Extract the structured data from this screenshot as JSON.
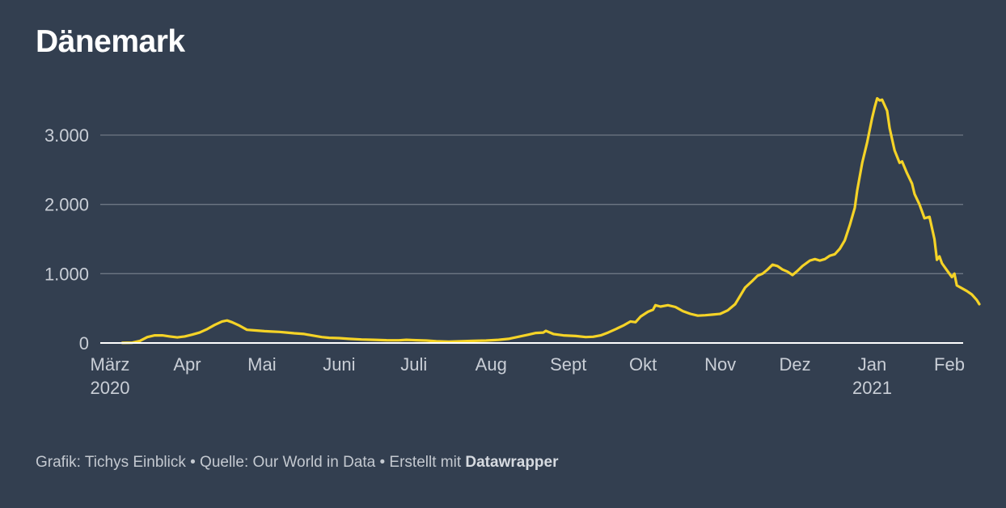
{
  "title": "Dänemark",
  "footer": {
    "credit": "Grafik: Tichys Einblick • Quelle: Our World in Data • Erstellt mit ",
    "brand": "Datawrapper"
  },
  "colors": {
    "background": "#333f50",
    "line": "#f5d327",
    "grid": "#6e7784",
    "axis": "#ffffff",
    "tick_text": "#c9ced6"
  },
  "chart_data": {
    "type": "line",
    "title": "Dänemark",
    "xlabel": "",
    "ylabel": "",
    "ylim": [
      0,
      3500
    ],
    "xlim": [
      "2020-03-01",
      "2021-02-01"
    ],
    "grid": true,
    "legend": "none",
    "y_ticks": [
      {
        "value": 0,
        "label": "0"
      },
      {
        "value": 1000,
        "label": "1.000"
      },
      {
        "value": 2000,
        "label": "2.000"
      },
      {
        "value": 3000,
        "label": "3.000"
      }
    ],
    "x_ticks": [
      {
        "date": "2020-03-01",
        "label": "März",
        "sublabel": "2020"
      },
      {
        "date": "2020-04-01",
        "label": "Apr"
      },
      {
        "date": "2020-05-01",
        "label": "Mai"
      },
      {
        "date": "2020-06-01",
        "label": "Juni"
      },
      {
        "date": "2020-07-01",
        "label": "Juli"
      },
      {
        "date": "2020-08-01",
        "label": "Aug"
      },
      {
        "date": "2020-09-01",
        "label": "Sept"
      },
      {
        "date": "2020-10-01",
        "label": "Okt"
      },
      {
        "date": "2020-11-01",
        "label": "Nov"
      },
      {
        "date": "2020-12-01",
        "label": "Dez"
      },
      {
        "date": "2021-01-01",
        "label": "Jan",
        "sublabel": "2021"
      },
      {
        "date": "2021-02-01",
        "label": "Feb"
      }
    ],
    "series": [
      {
        "color": "#f5d327",
        "points": [
          [
            "2020-03-06",
            2
          ],
          [
            "2020-03-10",
            5
          ],
          [
            "2020-03-13",
            30
          ],
          [
            "2020-03-16",
            85
          ],
          [
            "2020-03-19",
            110
          ],
          [
            "2020-03-22",
            110
          ],
          [
            "2020-03-25",
            95
          ],
          [
            "2020-03-28",
            80
          ],
          [
            "2020-03-31",
            95
          ],
          [
            "2020-04-03",
            120
          ],
          [
            "2020-04-06",
            150
          ],
          [
            "2020-04-09",
            200
          ],
          [
            "2020-04-12",
            260
          ],
          [
            "2020-04-15",
            310
          ],
          [
            "2020-04-17",
            325
          ],
          [
            "2020-04-19",
            300
          ],
          [
            "2020-04-22",
            250
          ],
          [
            "2020-04-25",
            190
          ],
          [
            "2020-04-29",
            180
          ],
          [
            "2020-05-02",
            170
          ],
          [
            "2020-05-05",
            165
          ],
          [
            "2020-05-08",
            160
          ],
          [
            "2020-05-11",
            150
          ],
          [
            "2020-05-14",
            140
          ],
          [
            "2020-05-18",
            130
          ],
          [
            "2020-05-21",
            110
          ],
          [
            "2020-05-25",
            85
          ],
          [
            "2020-05-28",
            75
          ],
          [
            "2020-06-01",
            70
          ],
          [
            "2020-06-05",
            60
          ],
          [
            "2020-06-10",
            50
          ],
          [
            "2020-06-15",
            45
          ],
          [
            "2020-06-20",
            40
          ],
          [
            "2020-06-25",
            38
          ],
          [
            "2020-06-28",
            45
          ],
          [
            "2020-07-02",
            40
          ],
          [
            "2020-07-06",
            35
          ],
          [
            "2020-07-10",
            25
          ],
          [
            "2020-07-15",
            20
          ],
          [
            "2020-07-20",
            25
          ],
          [
            "2020-07-25",
            30
          ],
          [
            "2020-07-30",
            35
          ],
          [
            "2020-08-04",
            45
          ],
          [
            "2020-08-08",
            60
          ],
          [
            "2020-08-12",
            90
          ],
          [
            "2020-08-16",
            120
          ],
          [
            "2020-08-19",
            145
          ],
          [
            "2020-08-22",
            150
          ],
          [
            "2020-08-23",
            175
          ],
          [
            "2020-08-26",
            130
          ],
          [
            "2020-08-30",
            110
          ],
          [
            "2020-09-04",
            100
          ],
          [
            "2020-09-08",
            85
          ],
          [
            "2020-09-11",
            90
          ],
          [
            "2020-09-14",
            110
          ],
          [
            "2020-09-17",
            150
          ],
          [
            "2020-09-20",
            200
          ],
          [
            "2020-09-23",
            250
          ],
          [
            "2020-09-26",
            310
          ],
          [
            "2020-09-28",
            300
          ],
          [
            "2020-09-30",
            380
          ],
          [
            "2020-10-03",
            450
          ],
          [
            "2020-10-05",
            480
          ],
          [
            "2020-10-06",
            545
          ],
          [
            "2020-10-08",
            525
          ],
          [
            "2020-10-11",
            545
          ],
          [
            "2020-10-14",
            520
          ],
          [
            "2020-10-17",
            460
          ],
          [
            "2020-10-20",
            420
          ],
          [
            "2020-10-23",
            395
          ],
          [
            "2020-10-26",
            400
          ],
          [
            "2020-10-29",
            410
          ],
          [
            "2020-11-01",
            420
          ],
          [
            "2020-11-04",
            470
          ],
          [
            "2020-11-07",
            560
          ],
          [
            "2020-11-09",
            680
          ],
          [
            "2020-11-11",
            800
          ],
          [
            "2020-11-14",
            900
          ],
          [
            "2020-11-16",
            970
          ],
          [
            "2020-11-18",
            1000
          ],
          [
            "2020-11-20",
            1060
          ],
          [
            "2020-11-22",
            1130
          ],
          [
            "2020-11-24",
            1110
          ],
          [
            "2020-11-26",
            1060
          ],
          [
            "2020-11-28",
            1030
          ],
          [
            "2020-11-30",
            980
          ],
          [
            "2020-12-02",
            1040
          ],
          [
            "2020-12-04",
            1110
          ],
          [
            "2020-12-07",
            1190
          ],
          [
            "2020-12-09",
            1210
          ],
          [
            "2020-12-11",
            1190
          ],
          [
            "2020-12-13",
            1210
          ],
          [
            "2020-12-15",
            1260
          ],
          [
            "2020-12-17",
            1280
          ],
          [
            "2020-12-19",
            1360
          ],
          [
            "2020-12-21",
            1480
          ],
          [
            "2020-12-23",
            1700
          ],
          [
            "2020-12-25",
            1950
          ],
          [
            "2020-12-26",
            2200
          ],
          [
            "2020-12-28",
            2600
          ],
          [
            "2020-12-30",
            2900
          ],
          [
            "2021-01-01",
            3250
          ],
          [
            "2021-01-02",
            3400
          ],
          [
            "2021-01-03",
            3530
          ],
          [
            "2021-01-04",
            3500
          ],
          [
            "2021-01-05",
            3510
          ],
          [
            "2021-01-07",
            3350
          ],
          [
            "2021-01-08",
            3100
          ],
          [
            "2021-01-10",
            2780
          ],
          [
            "2021-01-12",
            2600
          ],
          [
            "2021-01-13",
            2620
          ],
          [
            "2021-01-15",
            2450
          ],
          [
            "2021-01-17",
            2300
          ],
          [
            "2021-01-18",
            2150
          ],
          [
            "2021-01-20",
            2000
          ],
          [
            "2021-01-21",
            1900
          ],
          [
            "2021-01-22",
            1800
          ],
          [
            "2021-01-24",
            1820
          ],
          [
            "2021-01-26",
            1500
          ],
          [
            "2021-01-27",
            1200
          ],
          [
            "2021-01-28",
            1250
          ],
          [
            "2021-01-29",
            1150
          ],
          [
            "2021-01-31",
            1050
          ],
          [
            "2021-02-02",
            950
          ],
          [
            "2021-02-03",
            1000
          ],
          [
            "2021-02-04",
            830
          ],
          [
            "2021-02-06",
            790
          ],
          [
            "2021-02-08",
            750
          ],
          [
            "2021-02-10",
            700
          ],
          [
            "2021-02-12",
            620
          ],
          [
            "2021-02-13",
            560
          ]
        ]
      }
    ]
  }
}
